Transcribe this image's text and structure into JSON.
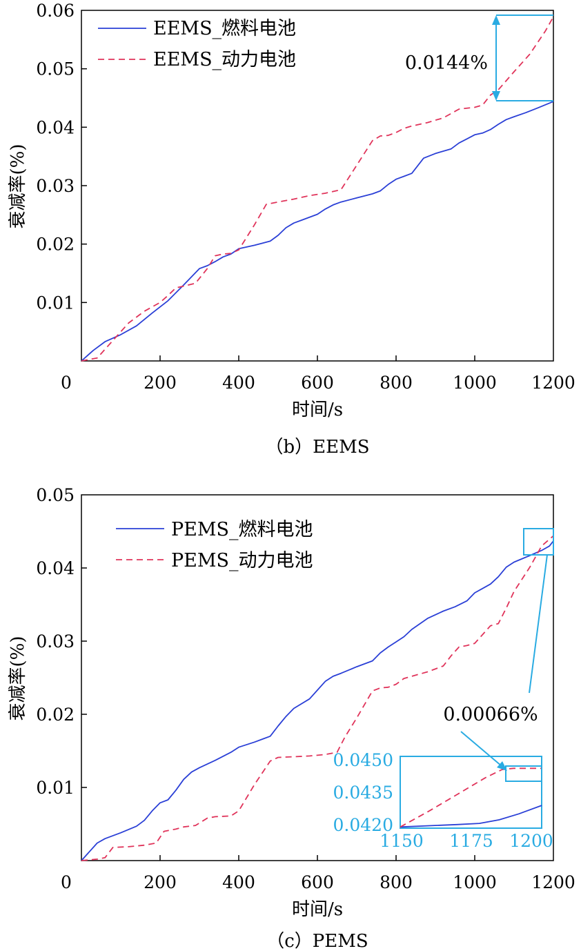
{
  "chart_data": [
    {
      "type": "line",
      "caption": "（b）EEMS",
      "xlabel": "时间/s",
      "ylabel": "衰减率(%)",
      "xlim": [
        0,
        1200
      ],
      "ylim": [
        0,
        0.06
      ],
      "xticks": [
        0,
        200,
        400,
        600,
        800,
        1000,
        1200
      ],
      "xtick_labels": [
        "0",
        "200",
        "400",
        "600",
        "800",
        "1000",
        "1200"
      ],
      "yticks": [
        0.01,
        0.02,
        0.03,
        0.04,
        0.05,
        0.06
      ],
      "ytick_labels": [
        "0.01",
        "0.02",
        "0.03",
        "0.04",
        "0.05",
        "0.06"
      ],
      "legend_position": "top-left",
      "grid": false,
      "series": [
        {
          "name": "EEMS_燃料电池",
          "style": "solid",
          "color": "#2a3fd6",
          "x": [
            0,
            30,
            60,
            100,
            140,
            180,
            220,
            260,
            300,
            320,
            340,
            360,
            380,
            400,
            440,
            480,
            500,
            520,
            540,
            560,
            600,
            620,
            640,
            660,
            700,
            740,
            760,
            780,
            800,
            820,
            840,
            870,
            900,
            940,
            960,
            980,
            1000,
            1020,
            1040,
            1060,
            1080,
            1100,
            1130,
            1160,
            1200
          ],
          "y": [
            0,
            0.0018,
            0.0033,
            0.0045,
            0.006,
            0.0082,
            0.0103,
            0.013,
            0.0158,
            0.0163,
            0.017,
            0.0178,
            0.0183,
            0.0192,
            0.0198,
            0.0205,
            0.0215,
            0.0228,
            0.0236,
            0.0241,
            0.0251,
            0.026,
            0.0267,
            0.0272,
            0.0279,
            0.0286,
            0.0291,
            0.0302,
            0.0311,
            0.0316,
            0.0321,
            0.0347,
            0.0355,
            0.0363,
            0.0373,
            0.038,
            0.0387,
            0.039,
            0.0396,
            0.0405,
            0.0413,
            0.0418,
            0.0425,
            0.0433,
            0.0444
          ]
        },
        {
          "name": "EEMS_动力电池",
          "style": "dashed",
          "color": "#e0335a",
          "x": [
            0,
            40,
            80,
            120,
            160,
            200,
            220,
            240,
            260,
            290,
            320,
            340,
            360,
            380,
            400,
            440,
            470,
            500,
            540,
            580,
            620,
            660,
            700,
            740,
            760,
            780,
            800,
            820,
            840,
            880,
            920,
            960,
            1000,
            1020,
            1040,
            1060,
            1100,
            1140,
            1180,
            1200
          ],
          "y": [
            0,
            0.0005,
            0.0035,
            0.0065,
            0.0085,
            0.01,
            0.0112,
            0.0125,
            0.0128,
            0.0133,
            0.0158,
            0.018,
            0.0183,
            0.0184,
            0.019,
            0.0233,
            0.0268,
            0.0272,
            0.0277,
            0.0283,
            0.0287,
            0.0293,
            0.0335,
            0.0377,
            0.0385,
            0.0386,
            0.0391,
            0.0398,
            0.0402,
            0.0408,
            0.0416,
            0.0431,
            0.0434,
            0.0438,
            0.0455,
            0.0464,
            0.0495,
            0.0525,
            0.0565,
            0.0589
          ]
        }
      ],
      "annotations": [
        {
          "text": "0.0144%"
        }
      ]
    },
    {
      "type": "line",
      "caption": "（c）PEMS",
      "xlabel": "时间/s",
      "ylabel": "衰减率(%)",
      "xlim": [
        0,
        1200
      ],
      "ylim": [
        0,
        0.05
      ],
      "xticks": [
        0,
        200,
        400,
        600,
        800,
        1000,
        1200
      ],
      "xtick_labels": [
        "0",
        "200",
        "400",
        "600",
        "800",
        "1000",
        "1200"
      ],
      "yticks": [
        0.01,
        0.02,
        0.03,
        0.04,
        0.05
      ],
      "ytick_labels": [
        "0.01",
        "0.02",
        "0.03",
        "0.04",
        "0.05"
      ],
      "legend_position": "top-left",
      "grid": false,
      "series": [
        {
          "name": "PEMS_燃料电池",
          "style": "solid",
          "color": "#2a3fd6",
          "x": [
            0,
            20,
            40,
            60,
            100,
            140,
            160,
            180,
            200,
            220,
            240,
            260,
            280,
            300,
            340,
            380,
            400,
            440,
            480,
            500,
            520,
            540,
            580,
            600,
            620,
            640,
            660,
            700,
            740,
            760,
            780,
            800,
            820,
            840,
            880,
            920,
            950,
            980,
            1000,
            1020,
            1040,
            1060,
            1080,
            1100,
            1140,
            1170,
            1190,
            1200
          ],
          "y": [
            0,
            0.0012,
            0.0024,
            0.003,
            0.0038,
            0.0047,
            0.0055,
            0.0068,
            0.0079,
            0.0083,
            0.0096,
            0.0111,
            0.0121,
            0.0127,
            0.0137,
            0.0148,
            0.0155,
            0.0162,
            0.017,
            0.0184,
            0.0197,
            0.0208,
            0.0221,
            0.0233,
            0.0245,
            0.0252,
            0.0256,
            0.0265,
            0.0273,
            0.0284,
            0.0292,
            0.0299,
            0.0306,
            0.0316,
            0.0331,
            0.0341,
            0.0347,
            0.0355,
            0.0366,
            0.0372,
            0.0378,
            0.0388,
            0.0401,
            0.0408,
            0.0417,
            0.0424,
            0.043,
            0.0437
          ]
        },
        {
          "name": "PEMS_动力电池",
          "style": "dashed",
          "color": "#e0335a",
          "x": [
            0,
            40,
            60,
            80,
            120,
            160,
            190,
            210,
            240,
            260,
            290,
            320,
            340,
            380,
            400,
            440,
            480,
            500,
            540,
            580,
            620,
            650,
            670,
            700,
            740,
            760,
            780,
            800,
            820,
            840,
            880,
            920,
            940,
            960,
            980,
            1000,
            1020,
            1040,
            1060,
            1080,
            1100,
            1140,
            1170,
            1200
          ],
          "y": [
            0,
            0.0002,
            0.0004,
            0.0018,
            0.0019,
            0.0021,
            0.0024,
            0.004,
            0.0043,
            0.0046,
            0.0048,
            0.0058,
            0.006,
            0.0061,
            0.0068,
            0.0104,
            0.0136,
            0.0141,
            0.0142,
            0.0143,
            0.0145,
            0.0148,
            0.0169,
            0.0195,
            0.0232,
            0.0236,
            0.0237,
            0.0241,
            0.0249,
            0.0252,
            0.0258,
            0.0266,
            0.028,
            0.0292,
            0.0294,
            0.0297,
            0.0309,
            0.0321,
            0.0324,
            0.0345,
            0.0368,
            0.0401,
            0.043,
            0.0444
          ]
        }
      ],
      "inset": {
        "xlim": [
          1150,
          1200
        ],
        "ylim": [
          0.042,
          0.045
        ],
        "xtick_labels": [
          "1150",
          "1175",
          "1200"
        ],
        "ytick_labels": [
          "0.0450",
          "0.0435",
          "0.0420"
        ],
        "color": "#29abe2"
      },
      "annotations": [
        {
          "text": "0.00066%"
        }
      ]
    }
  ]
}
